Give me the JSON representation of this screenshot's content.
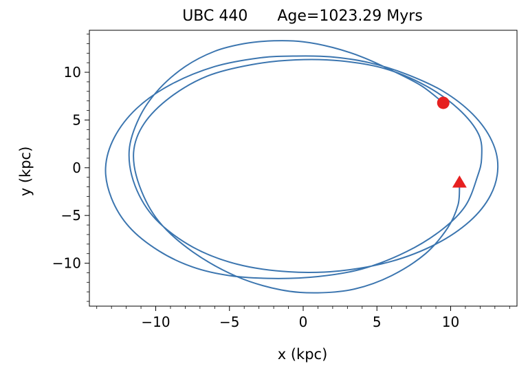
{
  "chart_data": {
    "type": "line",
    "title_name": "UBC 440",
    "title_age": "Age=1023.29 Myrs",
    "xlabel": "x (kpc)",
    "ylabel": "y (kpc)",
    "xlim": [
      -14.5,
      14.5
    ],
    "ylim": [
      -14.5,
      14.4
    ],
    "x_ticks": [
      -10,
      -5,
      0,
      5,
      10
    ],
    "y_ticks": [
      -10,
      -5,
      0,
      5,
      10
    ],
    "x_tick_labels": [
      "−10",
      "−5",
      "0",
      "5",
      "10"
    ],
    "y_tick_labels": [
      "−10",
      "−5",
      "0",
      "5",
      "10"
    ],
    "minor_tick_step": 1,
    "grid": false,
    "series": [
      {
        "color": "#3b75af",
        "points": [
          [
            9.5,
            6.8
          ],
          [
            8.0,
            8.6
          ],
          [
            6.0,
            10.2
          ],
          [
            4.0,
            11.6
          ],
          [
            2.0,
            12.6
          ],
          [
            0.0,
            13.2
          ],
          [
            -2.0,
            13.3
          ],
          [
            -4.0,
            13.0
          ],
          [
            -6.0,
            12.2
          ],
          [
            -8.0,
            10.6
          ],
          [
            -9.8,
            8.2
          ],
          [
            -11.1,
            5.3
          ],
          [
            -11.8,
            1.8
          ],
          [
            -11.4,
            -1.9
          ],
          [
            -10.0,
            -5.4
          ],
          [
            -7.5,
            -8.3
          ],
          [
            -4.5,
            -10.1
          ],
          [
            -1.0,
            -10.9
          ],
          [
            2.5,
            -10.8
          ],
          [
            6.0,
            -9.8
          ],
          [
            9.0,
            -8.0
          ],
          [
            11.3,
            -5.6
          ],
          [
            12.7,
            -2.9
          ],
          [
            13.2,
            0.0
          ],
          [
            12.8,
            2.8
          ],
          [
            11.5,
            5.6
          ],
          [
            9.5,
            8.0
          ],
          [
            7.0,
            9.8
          ],
          [
            4.5,
            11.0
          ],
          [
            2.0,
            11.6
          ],
          [
            -0.5,
            11.7
          ],
          [
            -3.0,
            11.5
          ],
          [
            -6.0,
            10.6
          ],
          [
            -9.0,
            8.7
          ],
          [
            -11.3,
            6.2
          ],
          [
            -12.8,
            3.2
          ],
          [
            -13.4,
            0.0
          ],
          [
            -13.0,
            -3.2
          ],
          [
            -11.8,
            -6.2
          ],
          [
            -9.8,
            -8.7
          ],
          [
            -7.5,
            -10.4
          ],
          [
            -5.0,
            -11.3
          ],
          [
            -2.0,
            -11.6
          ],
          [
            1.0,
            -11.4
          ],
          [
            4.0,
            -10.6
          ],
          [
            7.0,
            -8.8
          ],
          [
            9.4,
            -6.5
          ],
          [
            11.0,
            -4.0
          ],
          [
            11.8,
            -1.0
          ],
          [
            12.1,
            1.0
          ],
          [
            11.9,
            3.5
          ],
          [
            10.5,
            6.2
          ],
          [
            8.3,
            8.6
          ],
          [
            5.5,
            10.4
          ],
          [
            2.5,
            11.2
          ],
          [
            -0.5,
            11.3
          ],
          [
            -3.5,
            10.8
          ],
          [
            -6.5,
            9.6
          ],
          [
            -9.0,
            7.4
          ],
          [
            -10.8,
            4.6
          ],
          [
            -11.5,
            1.6
          ],
          [
            -11.1,
            -1.9
          ],
          [
            -9.8,
            -5.6
          ],
          [
            -7.5,
            -8.8
          ],
          [
            -4.5,
            -11.4
          ],
          [
            -1.5,
            -12.8
          ],
          [
            1.0,
            -13.1
          ],
          [
            3.5,
            -12.7
          ],
          [
            6.0,
            -11.3
          ],
          [
            8.3,
            -9.0
          ],
          [
            9.8,
            -6.3
          ],
          [
            10.5,
            -3.9
          ],
          [
            10.6,
            -1.8
          ]
        ]
      }
    ],
    "markers": [
      {
        "shape": "circle",
        "x": 9.5,
        "y": 6.8,
        "color": "#e62020"
      },
      {
        "shape": "triangle",
        "x": 10.6,
        "y": -1.6,
        "color": "#e62020"
      }
    ]
  }
}
